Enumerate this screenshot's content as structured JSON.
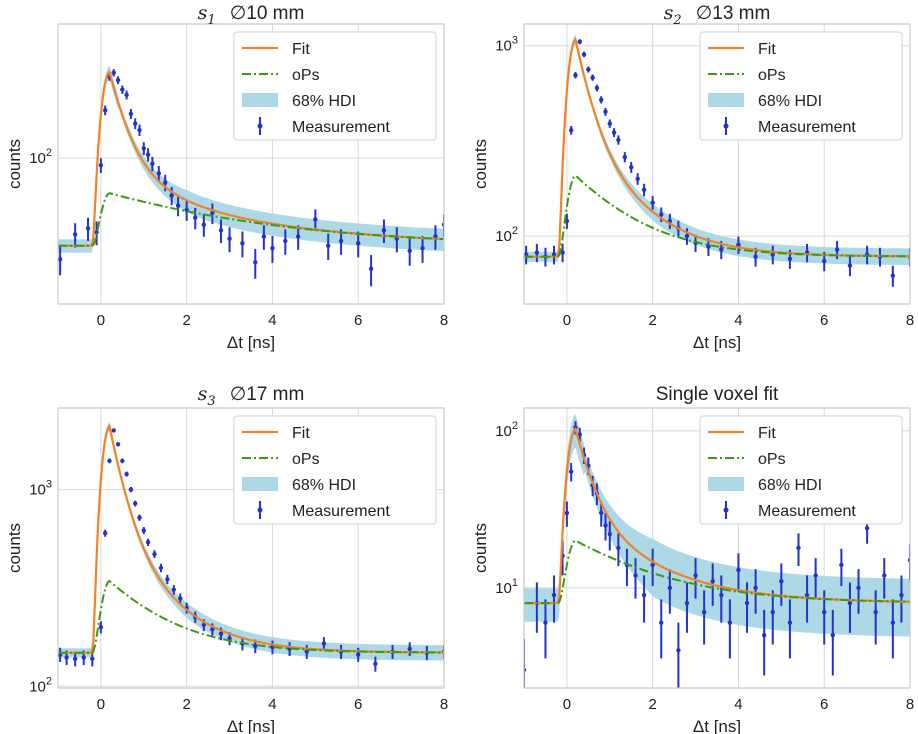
{
  "colors": {
    "fit": "#f0822a",
    "ops": "#3a9a12",
    "hdi": "#add8e6",
    "measurement": "#2233cc",
    "grid": "#d8d8d8",
    "frame": "#c8c8c8"
  },
  "chart_data": [
    {
      "type": "line",
      "title": "∅10 mm",
      "title_symbol": "s",
      "title_subscript": "1",
      "xlabel": "Δt [ns]",
      "ylabel": "counts",
      "xlim": [
        -1,
        8
      ],
      "ylim": [
        12,
        700
      ],
      "yscale": "log",
      "grid": true,
      "legend_placement": "upper-right",
      "xticks": [
        0,
        2,
        4,
        6,
        8
      ],
      "xtick_labels": [
        "0",
        "2",
        "4",
        "6",
        "8"
      ],
      "yticks": [
        100
      ],
      "ytick_labels": [
        "10^2"
      ],
      "legend": [
        "Fit",
        "oPs",
        "68% HDI",
        "Measurement"
      ],
      "model": {
        "baseline": 28,
        "ops_peak": 32,
        "fit_peak": 320,
        "ops_tau": 3.2,
        "hdi_frac": 0.16
      },
      "measurement": [
        {
          "x": -0.95,
          "y": 23
        },
        {
          "x": -0.6,
          "y": 33
        },
        {
          "x": -0.3,
          "y": 36
        },
        {
          "x": -0.1,
          "y": 34
        },
        {
          "x": 0.0,
          "y": 90
        },
        {
          "x": 0.1,
          "y": 200
        },
        {
          "x": 0.2,
          "y": 325
        },
        {
          "x": 0.3,
          "y": 345
        },
        {
          "x": 0.4,
          "y": 310
        },
        {
          "x": 0.5,
          "y": 270
        },
        {
          "x": 0.6,
          "y": 250
        },
        {
          "x": 0.7,
          "y": 190
        },
        {
          "x": 0.8,
          "y": 165
        },
        {
          "x": 0.9,
          "y": 150
        },
        {
          "x": 1.0,
          "y": 115
        },
        {
          "x": 1.1,
          "y": 105
        },
        {
          "x": 1.2,
          "y": 92
        },
        {
          "x": 1.35,
          "y": 80
        },
        {
          "x": 1.5,
          "y": 70
        },
        {
          "x": 1.65,
          "y": 58
        },
        {
          "x": 1.8,
          "y": 50
        },
        {
          "x": 2.0,
          "y": 47
        },
        {
          "x": 2.2,
          "y": 42
        },
        {
          "x": 2.4,
          "y": 38
        },
        {
          "x": 2.6,
          "y": 45
        },
        {
          "x": 2.8,
          "y": 35
        },
        {
          "x": 3.0,
          "y": 31
        },
        {
          "x": 3.3,
          "y": 29
        },
        {
          "x": 3.6,
          "y": 22
        },
        {
          "x": 3.8,
          "y": 32
        },
        {
          "x": 4.0,
          "y": 27
        },
        {
          "x": 4.3,
          "y": 30
        },
        {
          "x": 4.6,
          "y": 32
        },
        {
          "x": 5.0,
          "y": 41
        },
        {
          "x": 5.3,
          "y": 28
        },
        {
          "x": 5.6,
          "y": 30
        },
        {
          "x": 6.0,
          "y": 29
        },
        {
          "x": 6.3,
          "y": 20
        },
        {
          "x": 6.6,
          "y": 35
        },
        {
          "x": 6.9,
          "y": 31
        },
        {
          "x": 7.2,
          "y": 26
        },
        {
          "x": 7.5,
          "y": 27
        },
        {
          "x": 7.8,
          "y": 32
        },
        {
          "x": 8.0,
          "y": 38
        }
      ]
    },
    {
      "type": "line",
      "title": "∅13 mm",
      "title_symbol": "s",
      "title_subscript": "2",
      "xlabel": "Δt [ns]",
      "ylabel": "counts",
      "xlim": [
        -1,
        8
      ],
      "ylim": [
        44,
        1300
      ],
      "yscale": "log",
      "grid": true,
      "legend_placement": "upper-right",
      "xticks": [
        0,
        2,
        4,
        6,
        8
      ],
      "xtick_labels": [
        "0",
        "2",
        "4",
        "6",
        "8"
      ],
      "yticks": [
        100,
        1000
      ],
      "ytick_labels": [
        "10^2",
        "10^3"
      ],
      "legend": [
        "Fit",
        "oPs",
        "68% HDI",
        "Measurement"
      ],
      "model": {
        "baseline": 78,
        "ops_peak": 130,
        "fit_peak": 1000,
        "ops_tau": 1.3,
        "hdi_frac": 0.1
      },
      "measurement": [
        {
          "x": -0.95,
          "y": 80
        },
        {
          "x": -0.7,
          "y": 82
        },
        {
          "x": -0.5,
          "y": 78
        },
        {
          "x": -0.3,
          "y": 80
        },
        {
          "x": -0.1,
          "y": 82
        },
        {
          "x": 0.0,
          "y": 120
        },
        {
          "x": 0.1,
          "y": 360
        },
        {
          "x": 0.2,
          "y": 700
        },
        {
          "x": 0.3,
          "y": 1050
        },
        {
          "x": 0.4,
          "y": 900
        },
        {
          "x": 0.5,
          "y": 750
        },
        {
          "x": 0.6,
          "y": 680
        },
        {
          "x": 0.7,
          "y": 600
        },
        {
          "x": 0.8,
          "y": 520
        },
        {
          "x": 0.9,
          "y": 450
        },
        {
          "x": 1.0,
          "y": 390
        },
        {
          "x": 1.1,
          "y": 350
        },
        {
          "x": 1.2,
          "y": 320
        },
        {
          "x": 1.35,
          "y": 260
        },
        {
          "x": 1.5,
          "y": 230
        },
        {
          "x": 1.65,
          "y": 200
        },
        {
          "x": 1.8,
          "y": 175
        },
        {
          "x": 2.0,
          "y": 150
        },
        {
          "x": 2.2,
          "y": 130
        },
        {
          "x": 2.4,
          "y": 120
        },
        {
          "x": 2.6,
          "y": 110
        },
        {
          "x": 2.8,
          "y": 100
        },
        {
          "x": 3.0,
          "y": 92
        },
        {
          "x": 3.3,
          "y": 88
        },
        {
          "x": 3.6,
          "y": 85
        },
        {
          "x": 4.0,
          "y": 90
        },
        {
          "x": 4.4,
          "y": 78
        },
        {
          "x": 4.8,
          "y": 80
        },
        {
          "x": 5.2,
          "y": 76
        },
        {
          "x": 5.6,
          "y": 82
        },
        {
          "x": 6.0,
          "y": 74
        },
        {
          "x": 6.3,
          "y": 85
        },
        {
          "x": 6.6,
          "y": 70
        },
        {
          "x": 7.0,
          "y": 80
        },
        {
          "x": 7.3,
          "y": 78
        },
        {
          "x": 7.6,
          "y": 62
        },
        {
          "x": 8.0,
          "y": 78
        }
      ]
    },
    {
      "type": "line",
      "title": "∅17 mm",
      "title_symbol": "s",
      "title_subscript": "3",
      "xlabel": "Δt [ns]",
      "ylabel": "counts",
      "xlim": [
        -1,
        8
      ],
      "ylim": [
        98,
        2600
      ],
      "yscale": "log",
      "grid": true,
      "legend_placement": "upper-right",
      "xticks": [
        0,
        2,
        4,
        6,
        8
      ],
      "xtick_labels": [
        "0",
        "2",
        "4",
        "6",
        "8"
      ],
      "yticks": [
        100,
        1000
      ],
      "ytick_labels": [
        "10^2",
        "10^3"
      ],
      "legend": [
        "Fit",
        "oPs",
        "68% HDI",
        "Measurement"
      ],
      "model": {
        "baseline": 148,
        "ops_peak": 195,
        "fit_peak": 1950,
        "ops_tau": 1.3,
        "hdi_frac": 0.09
      },
      "measurement": [
        {
          "x": -0.95,
          "y": 145
        },
        {
          "x": -0.8,
          "y": 140
        },
        {
          "x": -0.6,
          "y": 138
        },
        {
          "x": -0.4,
          "y": 140
        },
        {
          "x": -0.2,
          "y": 138
        },
        {
          "x": 0.0,
          "y": 200
        },
        {
          "x": 0.1,
          "y": 600
        },
        {
          "x": 0.2,
          "y": 1400
        },
        {
          "x": 0.3,
          "y": 2000
        },
        {
          "x": 0.4,
          "y": 1700
        },
        {
          "x": 0.5,
          "y": 1400
        },
        {
          "x": 0.6,
          "y": 1200
        },
        {
          "x": 0.7,
          "y": 1000
        },
        {
          "x": 0.8,
          "y": 850
        },
        {
          "x": 0.9,
          "y": 720
        },
        {
          "x": 1.0,
          "y": 620
        },
        {
          "x": 1.1,
          "y": 540
        },
        {
          "x": 1.25,
          "y": 470
        },
        {
          "x": 1.4,
          "y": 400
        },
        {
          "x": 1.55,
          "y": 350
        },
        {
          "x": 1.7,
          "y": 310
        },
        {
          "x": 1.85,
          "y": 280
        },
        {
          "x": 2.0,
          "y": 250
        },
        {
          "x": 2.2,
          "y": 225
        },
        {
          "x": 2.4,
          "y": 205
        },
        {
          "x": 2.6,
          "y": 195
        },
        {
          "x": 2.8,
          "y": 185
        },
        {
          "x": 3.0,
          "y": 175
        },
        {
          "x": 3.3,
          "y": 165
        },
        {
          "x": 3.6,
          "y": 160
        },
        {
          "x": 4.0,
          "y": 158
        },
        {
          "x": 4.4,
          "y": 155
        },
        {
          "x": 4.8,
          "y": 150
        },
        {
          "x": 5.2,
          "y": 165
        },
        {
          "x": 5.6,
          "y": 150
        },
        {
          "x": 6.0,
          "y": 145
        },
        {
          "x": 6.4,
          "y": 130
        },
        {
          "x": 6.8,
          "y": 150
        },
        {
          "x": 7.2,
          "y": 155
        },
        {
          "x": 7.6,
          "y": 148
        },
        {
          "x": 8.0,
          "y": 150
        }
      ]
    },
    {
      "type": "line",
      "title": "Single voxel fit",
      "title_symbol": "",
      "title_subscript": "",
      "xlabel": "Δt [ns]",
      "ylabel": "counts",
      "xlim": [
        -1,
        8
      ],
      "ylim": [
        2.3,
        140
      ],
      "yscale": "log",
      "grid": true,
      "legend_placement": "upper-right",
      "xticks": [
        0,
        2,
        4,
        6,
        8
      ],
      "xtick_labels": [
        "0",
        "2",
        "4",
        "6",
        "8"
      ],
      "yticks": [
        10,
        100
      ],
      "ytick_labels": [
        "10^1",
        "10^2"
      ],
      "legend": [
        "Fit",
        "oPs",
        "68% HDI",
        "Measurement"
      ],
      "model": {
        "baseline": 8,
        "ops_peak": 12,
        "fit_peak": 95,
        "ops_tau": 1.8,
        "hdi_frac": 0.4
      },
      "measurement": [
        {
          "x": -1.0,
          "y": 3
        },
        {
          "x": -0.7,
          "y": 8
        },
        {
          "x": -0.5,
          "y": 6
        },
        {
          "x": -0.3,
          "y": 9
        },
        {
          "x": -0.1,
          "y": 16
        },
        {
          "x": 0.0,
          "y": 30
        },
        {
          "x": 0.1,
          "y": 55
        },
        {
          "x": 0.2,
          "y": 105
        },
        {
          "x": 0.3,
          "y": 95
        },
        {
          "x": 0.4,
          "y": 70
        },
        {
          "x": 0.5,
          "y": 60
        },
        {
          "x": 0.6,
          "y": 45
        },
        {
          "x": 0.7,
          "y": 40
        },
        {
          "x": 0.8,
          "y": 30
        },
        {
          "x": 0.9,
          "y": 25
        },
        {
          "x": 1.0,
          "y": 22
        },
        {
          "x": 1.2,
          "y": 18
        },
        {
          "x": 1.4,
          "y": 14
        },
        {
          "x": 1.6,
          "y": 12
        },
        {
          "x": 1.8,
          "y": 9
        },
        {
          "x": 2.0,
          "y": 14
        },
        {
          "x": 2.2,
          "y": 6
        },
        {
          "x": 2.4,
          "y": 10
        },
        {
          "x": 2.6,
          "y": 4
        },
        {
          "x": 2.8,
          "y": 8
        },
        {
          "x": 3.0,
          "y": 12
        },
        {
          "x": 3.2,
          "y": 7
        },
        {
          "x": 3.4,
          "y": 11
        },
        {
          "x": 3.6,
          "y": 9
        },
        {
          "x": 3.8,
          "y": 6
        },
        {
          "x": 4.0,
          "y": 13
        },
        {
          "x": 4.2,
          "y": 8
        },
        {
          "x": 4.4,
          "y": 10
        },
        {
          "x": 4.6,
          "y": 5
        },
        {
          "x": 4.8,
          "y": 7
        },
        {
          "x": 5.0,
          "y": 11
        },
        {
          "x": 5.2,
          "y": 6
        },
        {
          "x": 5.4,
          "y": 18
        },
        {
          "x": 5.6,
          "y": 9
        },
        {
          "x": 5.8,
          "y": 12
        },
        {
          "x": 6.0,
          "y": 7
        },
        {
          "x": 6.2,
          "y": 5
        },
        {
          "x": 6.4,
          "y": 14
        },
        {
          "x": 6.6,
          "y": 8
        },
        {
          "x": 6.8,
          "y": 10
        },
        {
          "x": 7.0,
          "y": 24
        },
        {
          "x": 7.2,
          "y": 7
        },
        {
          "x": 7.4,
          "y": 12
        },
        {
          "x": 7.6,
          "y": 6
        },
        {
          "x": 7.8,
          "y": 9
        },
        {
          "x": 8.0,
          "y": 15
        }
      ]
    }
  ]
}
